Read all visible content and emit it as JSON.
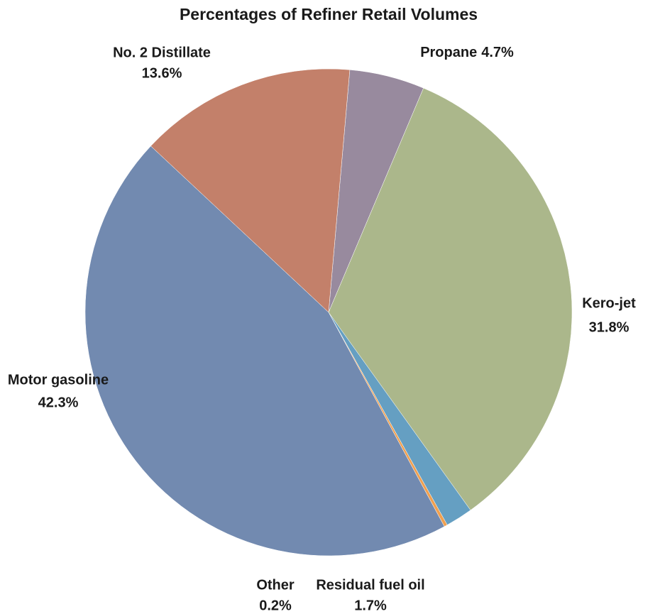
{
  "chart_data": {
    "type": "pie",
    "title": "Percentages of Refiner Retail Volumes",
    "categories": [
      "Propane",
      "Kero-jet",
      "Residual fuel oil",
      "Other",
      "Motor gasoline",
      "No. 2 Distillate"
    ],
    "values": [
      4.7,
      31.8,
      1.7,
      0.2,
      42.3,
      13.6
    ],
    "value_labels": [
      "4.7%",
      "31.8%",
      "1.7%",
      "0.2%",
      "42.3%",
      "13.6%"
    ],
    "colors": [
      "#988a9e",
      "#abb78b",
      "#659fc2",
      "#f0a050",
      "#728ab0",
      "#c3806a"
    ]
  }
}
